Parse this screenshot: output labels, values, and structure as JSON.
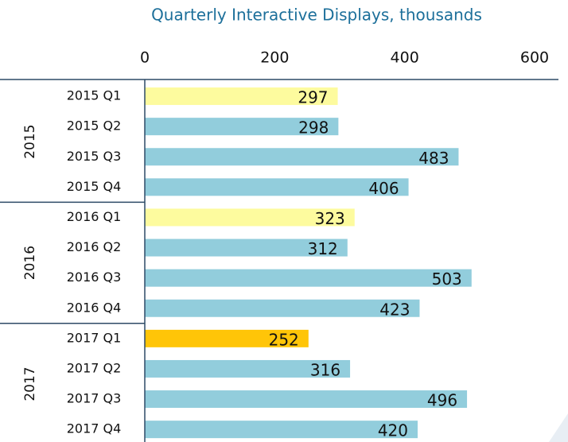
{
  "chart_data": {
    "type": "bar",
    "orientation": "horizontal",
    "title": "Quarterly Interactive Displays, thousands",
    "categories": [
      "2015 Q1",
      "2015 Q2",
      "2015 Q3",
      "2015 Q4",
      "2016 Q1",
      "2016 Q2",
      "2016 Q3",
      "2016 Q4",
      "2017 Q1",
      "2017 Q2",
      "2017 Q3",
      "2017 Q4"
    ],
    "groups": [
      "2015",
      "2016",
      "2017"
    ],
    "values": [
      297,
      298,
      483,
      406,
      323,
      312,
      503,
      423,
      252,
      316,
      496,
      420
    ],
    "colors": [
      "#fdfb9e",
      "#92cddc",
      "#92cddc",
      "#92cddc",
      "#fdfb9e",
      "#92cddc",
      "#92cddc",
      "#92cddc",
      "#ffc508",
      "#92cddc",
      "#92cddc",
      "#92cddc"
    ],
    "xlim": [
      0,
      600
    ],
    "xticks": [
      0,
      200,
      400,
      600
    ]
  }
}
